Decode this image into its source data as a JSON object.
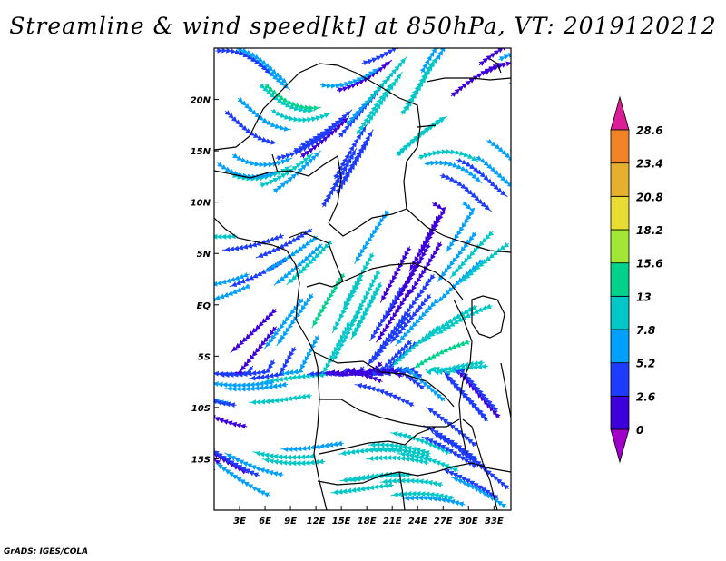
{
  "title": "Streamline & wind speed[kt] at 850hPa, VT: 2019120212",
  "credit": "GrADS: IGES/COLA",
  "map": {
    "lon_range": [
      0,
      35
    ],
    "lat_range": [
      -20,
      25
    ],
    "x_ticks": [
      "3E",
      "6E",
      "9E",
      "12E",
      "15E",
      "18E",
      "21E",
      "24E",
      "27E",
      "30E",
      "33E"
    ],
    "y_ticks": [
      "20N",
      "15N",
      "10N",
      "5N",
      "EQ",
      "5S",
      "10S",
      "15S"
    ]
  },
  "colorbar": {
    "labels": [
      "0",
      "2.6",
      "5.2",
      "7.8",
      "13",
      "15.6",
      "18.2",
      "20.8",
      "23.4",
      "28.6"
    ],
    "colors": [
      "#a000c8",
      "#3d00dc",
      "#1e3cff",
      "#00a0ff",
      "#00c8c8",
      "#00d28c",
      "#a0e632",
      "#e6dc32",
      "#e6af2d",
      "#f08228",
      "#dc1e96"
    ]
  }
}
